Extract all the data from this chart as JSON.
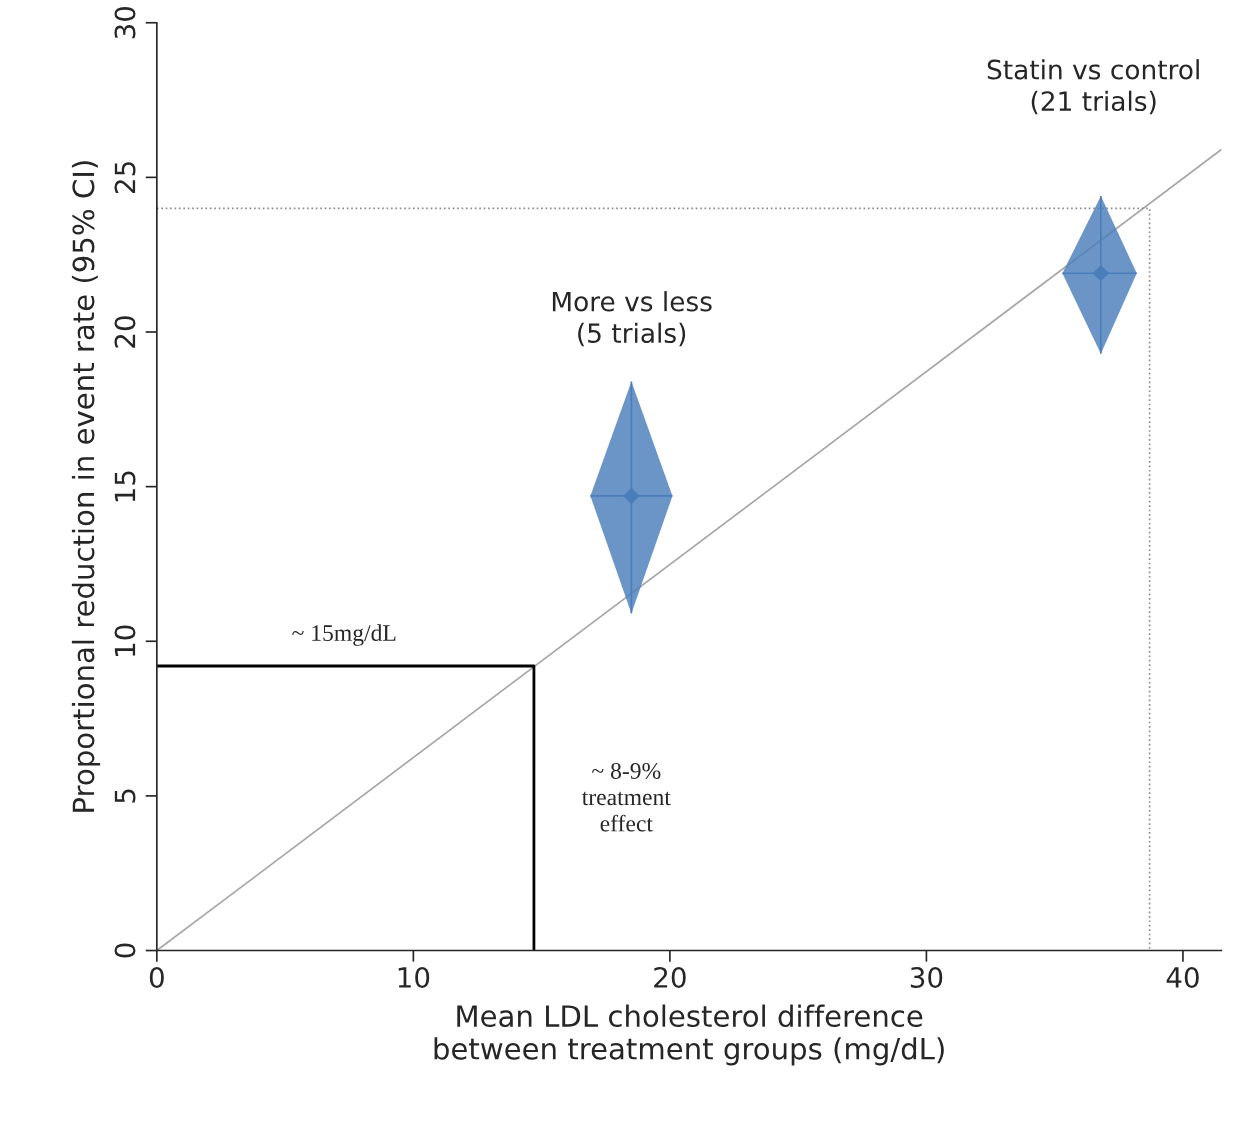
{
  "chart_data": {
    "type": "scatter",
    "xlabel": "Mean LDL cholesterol difference\nbetween treatment groups (mg/dL)",
    "ylabel": "Proportional reduction in event rate (95% CI)",
    "xlim": [
      0,
      41.5
    ],
    "ylim": [
      0,
      30
    ],
    "xticks": [
      0,
      10,
      20,
      30,
      40
    ],
    "yticks": [
      0,
      5,
      10,
      15,
      20,
      25,
      30
    ],
    "grid": false,
    "legend": false,
    "series": [
      {
        "type": "line",
        "color": "#a6a6a6",
        "line_style": "solid",
        "x": [
          0,
          41.5
        ],
        "values": [
          0,
          25.9
        ]
      },
      {
        "type": "line",
        "color": "#8c8c8c",
        "line_style": "dotted",
        "x": [
          0,
          38.7,
          38.7
        ],
        "values": [
          24,
          24,
          0
        ]
      },
      {
        "type": "line",
        "color": "#000000",
        "line_style": "solid",
        "x": [
          0,
          14.7,
          14.7
        ],
        "values": [
          9.2,
          9.2,
          0
        ]
      },
      {
        "marker": "diamond",
        "color": "#4a7ebb",
        "x": [
          18.5,
          36.8
        ],
        "values": [
          14.7,
          21.9
        ],
        "errors": [
          [
            10.9,
            18.4
          ],
          [
            19.3,
            24.4
          ]
        ],
        "xerrors": [
          [
            16.9,
            20.1
          ],
          [
            35.3,
            38.2
          ]
        ]
      }
    ],
    "annotations": [
      "More vs less\n(5 trials)",
      "Statin vs control\n(21 trials)",
      "~ 15mg/dL",
      "~ 8-9%\ntreatment\neffect"
    ]
  }
}
